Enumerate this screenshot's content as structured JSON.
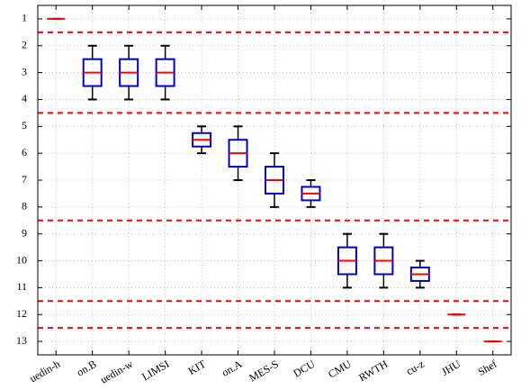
{
  "chart_data": {
    "type": "box",
    "categories": [
      "uedin-h",
      "on.B",
      "uedin-w",
      "LIMSI",
      "KIT",
      "on.A",
      "MES-S",
      "DCU",
      "CMU",
      "RWTH",
      "cu-z",
      "JHU",
      "Shef"
    ],
    "boxes": [
      {
        "min": 1,
        "q1": 1,
        "median": 1,
        "q3": 1,
        "max": 1
      },
      {
        "min": 2,
        "q1": 2.5,
        "median": 3,
        "q3": 3.5,
        "max": 4
      },
      {
        "min": 2,
        "q1": 2.5,
        "median": 3,
        "q3": 3.5,
        "max": 4
      },
      {
        "min": 2,
        "q1": 2.5,
        "median": 3,
        "q3": 3.5,
        "max": 4
      },
      {
        "min": 5,
        "q1": 5.25,
        "median": 5.5,
        "q3": 5.75,
        "max": 6
      },
      {
        "min": 5,
        "q1": 5.5,
        "median": 6,
        "q3": 6.5,
        "max": 7
      },
      {
        "min": 6,
        "q1": 6.5,
        "median": 7,
        "q3": 7.5,
        "max": 8
      },
      {
        "min": 7,
        "q1": 7.25,
        "median": 7.5,
        "q3": 7.75,
        "max": 8
      },
      {
        "min": 9,
        "q1": 9.5,
        "median": 10,
        "q3": 10.5,
        "max": 11
      },
      {
        "min": 9,
        "q1": 9.5,
        "median": 10,
        "q3": 10.5,
        "max": 11
      },
      {
        "min": 10,
        "q1": 10.25,
        "median": 10.5,
        "q3": 10.75,
        "max": 11
      },
      {
        "min": 12,
        "q1": 12,
        "median": 12,
        "q3": 12,
        "max": 12
      },
      {
        "min": 13,
        "q1": 13,
        "median": 13,
        "q3": 13,
        "max": 13
      }
    ],
    "separators": [
      1.5,
      4.5,
      8.5,
      11.5,
      12.5
    ],
    "separator_color": "#ff0000",
    "box_color": "#0000cc",
    "median_color": "#ff0000",
    "whisker_color": "#000000",
    "ylim": [
      0.5,
      13.5
    ],
    "y_inverted": true,
    "yticks": [
      1,
      2,
      3,
      4,
      5,
      6,
      7,
      8,
      9,
      10,
      11,
      12,
      13
    ],
    "grid": true
  }
}
